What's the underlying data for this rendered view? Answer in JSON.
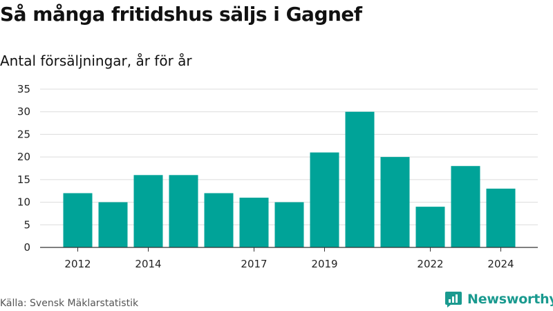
{
  "title": "Så många fritidshus säljs i Gagnef",
  "subtitle": "Antal försäljningar, år för år",
  "source": "Källa: Svensk Mäklarstatistik",
  "brand": {
    "name": "Newsworthy",
    "color": "#1a9a8f"
  },
  "chart_data": {
    "type": "bar",
    "categories": [
      "2012",
      "2013",
      "2014",
      "2015",
      "2016",
      "2017",
      "2018",
      "2019",
      "2020",
      "2021",
      "2022",
      "2023",
      "2024"
    ],
    "values": [
      12,
      10,
      16,
      16,
      12,
      11,
      10,
      21,
      30,
      20,
      9,
      18,
      13
    ],
    "x_tick_labels": [
      "2012",
      "2014",
      "2017",
      "2019",
      "2022",
      "2024"
    ],
    "y_ticks": [
      0,
      5,
      10,
      15,
      20,
      25,
      30,
      35
    ],
    "ylim": [
      0,
      35
    ],
    "grid": true,
    "bar_color": "#00a398",
    "legend": "none"
  }
}
